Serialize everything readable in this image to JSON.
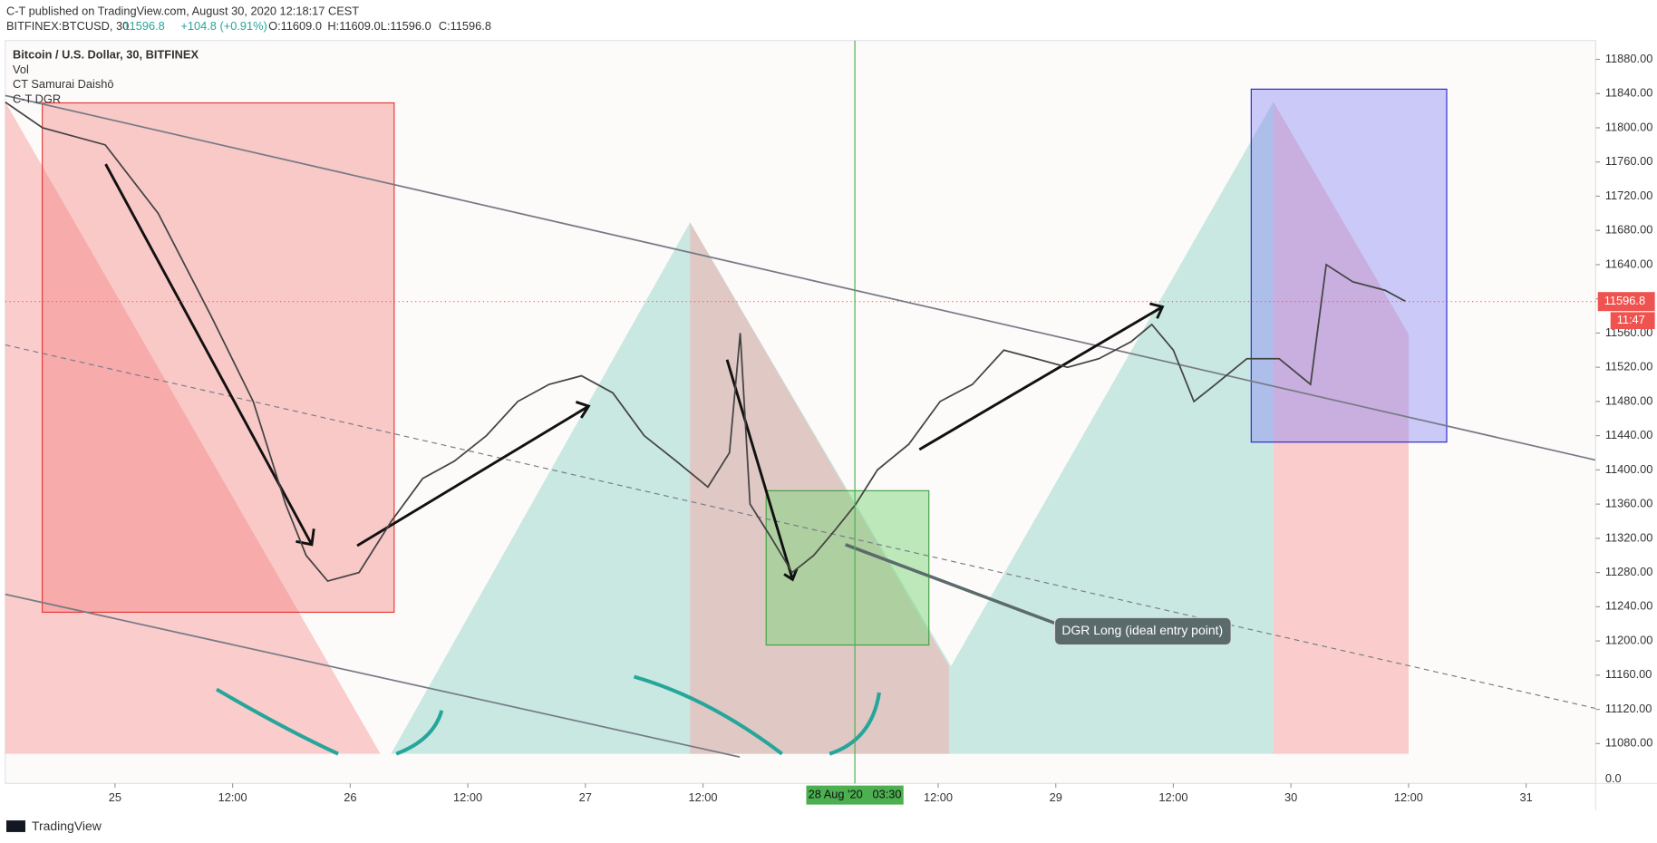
{
  "header": {
    "publisher": "C-T published on TradingView.com, August 30, 2020 12:18:17 CEST",
    "symbol": "BITFINEX:BTCUSD, 30",
    "last": "11596.8",
    "change": "+104.8 (+0.91%)",
    "open": "O:11609.0",
    "high": "H:11609.0",
    "low": "L:11596.0",
    "close": "C:11596.8"
  },
  "legend": [
    "Bitcoin / U.S. Dollar, 30, BITFINEX",
    "Vol",
    "CT Samurai Daishō",
    "C-T DGR"
  ],
  "footer": "TradingView",
  "chart_data": {
    "type": "line",
    "x": [
      -11.2,
      -7.4,
      -1.0,
      4.4,
      9.8,
      14.1,
      17.4,
      19.5,
      21.7,
      24.9,
      28.2,
      31.4,
      34.6,
      37.9,
      41.1,
      44.3,
      47.6,
      50.8,
      54.0,
      57.3,
      60.5,
      62.7,
      63.8,
      64.8,
      67.0,
      69.1,
      71.3,
      73.5,
      75.6,
      77.8,
      81.0,
      84.2,
      87.5,
      90.7,
      94.0,
      97.2,
      100.4,
      103.7,
      105.8,
      108.0,
      110.1,
      112.3,
      115.5,
      118.8,
      122.0,
      123.6,
      126.3,
      129.6,
      131.7
    ],
    "series": [
      {
        "name": "BTCUSD",
        "color": "#444444",
        "values": [
          11830,
          11800,
          11780,
          11700,
          11580,
          11480,
          11360,
          11300,
          11270,
          11280,
          11340,
          11390,
          11410,
          11440,
          11480,
          11500,
          11510,
          11490,
          11440,
          11410,
          11380,
          11420,
          11560,
          11360,
          11320,
          11280,
          11300,
          11330,
          11360,
          11400,
          11430,
          11480,
          11500,
          11540,
          11530,
          11520,
          11530,
          11550,
          11570,
          11540,
          11480,
          11500,
          11530,
          11530,
          11500,
          11640,
          11620,
          11610,
          11597
        ]
      }
    ],
    "xlim": [
      -11.2,
      151.1
    ],
    "ylim": [
      11068,
      11902
    ],
    "xticks": [
      {
        "value": 0,
        "label": "25"
      },
      {
        "value": 12,
        "label": "12:00"
      },
      {
        "value": 24,
        "label": "26"
      },
      {
        "value": 36,
        "label": "12:00"
      },
      {
        "value": 48,
        "label": "27"
      },
      {
        "value": 60,
        "label": "12:00"
      },
      {
        "value": 84,
        "label": "12:00"
      },
      {
        "value": 96,
        "label": "29"
      },
      {
        "value": 108,
        "label": "12:00"
      },
      {
        "value": 120,
        "label": "30"
      },
      {
        "value": 132,
        "label": "12:00"
      },
      {
        "value": 144,
        "label": "31"
      }
    ],
    "yticks": [
      {
        "value": 11080,
        "label": "11080.00"
      },
      {
        "value": 11120,
        "label": "11120.00"
      },
      {
        "value": 11160,
        "label": "11160.00"
      },
      {
        "value": 11200,
        "label": "11200.00"
      },
      {
        "value": 11240,
        "label": "11240.00"
      },
      {
        "value": 11280,
        "label": "11280.00"
      },
      {
        "value": 11320,
        "label": "11320.00"
      },
      {
        "value": 11360,
        "label": "11360.00"
      },
      {
        "value": 11400,
        "label": "11400.00"
      },
      {
        "value": 11440,
        "label": "11440.00"
      },
      {
        "value": 11480,
        "label": "11480.00"
      },
      {
        "value": 11520,
        "label": "11520.00"
      },
      {
        "value": 11560,
        "label": "11560.00"
      },
      {
        "value": 11600,
        "label": "11600.00"
      },
      {
        "value": 11640,
        "label": "11640.00"
      },
      {
        "value": 11680,
        "label": "11680.00"
      },
      {
        "value": 11720,
        "label": "11720.00"
      },
      {
        "value": 11760,
        "label": "11760.00"
      },
      {
        "value": 11800,
        "label": "11800.00"
      },
      {
        "value": 11840,
        "label": "11840.00"
      },
      {
        "value": 11880,
        "label": "11880.00"
      }
    ],
    "last_price": {
      "value": 11596.8,
      "label": "11596.8"
    },
    "countdown": "11:47",
    "crosshair": {
      "value": 75.5,
      "label": "28 Aug '20   03:30"
    },
    "volume_tick": "0.0",
    "annotation": "DGR Long (ideal entry point)"
  }
}
